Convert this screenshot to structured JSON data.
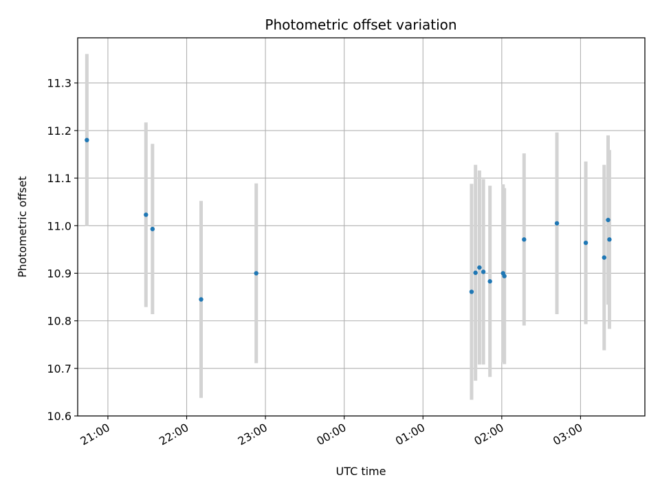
{
  "chart_data": {
    "type": "scatter",
    "title": "Photometric offset variation",
    "xlabel": "UTC time",
    "ylabel": "Photometric offset",
    "x_axis": "time",
    "x_range": [
      "20:37",
      "03:49"
    ],
    "x_ticks": [
      "21:00",
      "22:00",
      "23:00",
      "00:00",
      "01:00",
      "02:00",
      "03:00"
    ],
    "ylim": [
      10.6,
      11.395
    ],
    "y_ticks": [
      "10.6",
      "10.7",
      "10.8",
      "10.9",
      "11.0",
      "11.1",
      "11.2",
      "11.3"
    ],
    "grid": true,
    "marker_color": "#1f77b4",
    "errorbar_color": "#d3d3d3",
    "points": [
      {
        "x": "20:44",
        "y": 11.18,
        "yerr": 0.181
      },
      {
        "x": "21:29",
        "y": 11.023,
        "yerr": 0.194
      },
      {
        "x": "21:34",
        "y": 10.993,
        "yerr": 0.179
      },
      {
        "x": "22:11",
        "y": 10.845,
        "yerr": 0.207
      },
      {
        "x": "22:53",
        "y": 10.9,
        "yerr": 0.189
      },
      {
        "x": "01:37",
        "y": 10.861,
        "yerr": 0.227
      },
      {
        "x": "01:40",
        "y": 10.901,
        "yerr": 0.227
      },
      {
        "x": "01:43",
        "y": 10.912,
        "yerr": 0.204
      },
      {
        "x": "01:46",
        "y": 10.903,
        "yerr": 0.195
      },
      {
        "x": "01:51",
        "y": 10.883,
        "yerr": 0.201
      },
      {
        "x": "02:01",
        "y": 10.9,
        "yerr": 0.187
      },
      {
        "x": "02:02",
        "y": 10.894,
        "yerr": 0.185
      },
      {
        "x": "02:17",
        "y": 10.971,
        "yerr": 0.181
      },
      {
        "x": "02:42",
        "y": 11.005,
        "yerr": 0.191
      },
      {
        "x": "03:04",
        "y": 10.964,
        "yerr": 0.171
      },
      {
        "x": "03:18",
        "y": 10.933,
        "yerr": 0.195
      },
      {
        "x": "03:21",
        "y": 11.012,
        "yerr": 0.178
      },
      {
        "x": "03:22",
        "y": 10.971,
        "yerr": 0.188
      }
    ]
  }
}
